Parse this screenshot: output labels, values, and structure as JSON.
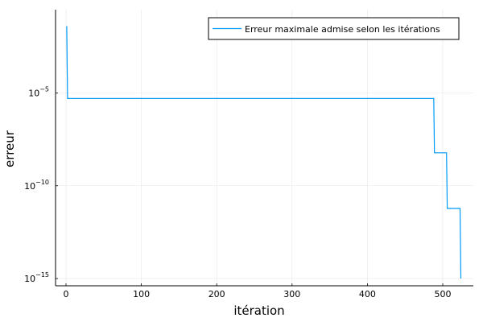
{
  "chart_data": {
    "type": "line",
    "title": "",
    "xlabel": "itération",
    "ylabel": "erreur",
    "xlim": [
      -5,
      540
    ],
    "ylim_log10": [
      -15.15,
      -10.0
    ],
    "y_scale": "log10",
    "grid": true,
    "legend_position": "top-right",
    "x_ticks": [
      0,
      100,
      200,
      300,
      400,
      500
    ],
    "y_ticks": [
      {
        "value": 1e-05,
        "base": "10",
        "exponent": "−5"
      },
      {
        "value": 1e-10,
        "base": "10",
        "exponent": "−10"
      },
      {
        "value": 1e-15,
        "base": "10",
        "exponent": "−15"
      }
    ],
    "series": [
      {
        "name": "Erreur maximale admise selon les itérations",
        "color": "#009af9",
        "x": [
          1,
          2,
          488,
          489,
          505,
          506,
          523,
          524
        ],
        "y": [
          0.04,
          5e-06,
          5e-06,
          6e-09,
          6e-09,
          6e-12,
          6e-12,
          1e-15
        ]
      }
    ]
  }
}
